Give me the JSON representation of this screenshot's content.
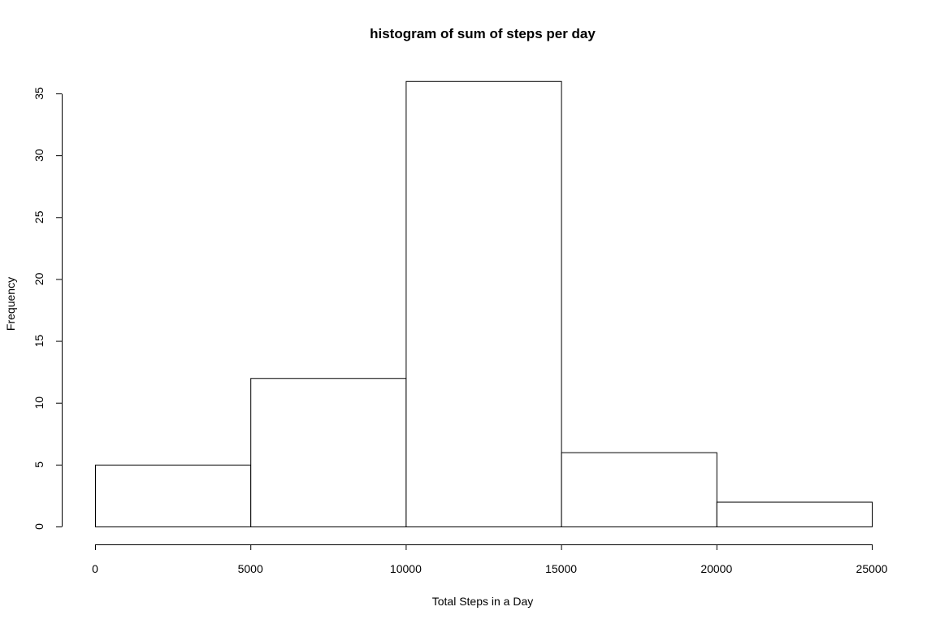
{
  "chart_data": {
    "type": "bar",
    "title": "histogram of sum of steps per day",
    "xlabel": "Total Steps in a Day",
    "ylabel": "Frequency",
    "bins": [
      {
        "from": 0,
        "to": 5000,
        "count": 5
      },
      {
        "from": 5000,
        "to": 10000,
        "count": 12
      },
      {
        "from": 10000,
        "to": 15000,
        "count": 36
      },
      {
        "from": 15000,
        "to": 20000,
        "count": 6
      },
      {
        "from": 20000,
        "to": 25000,
        "count": 2
      }
    ],
    "xlim": [
      0,
      25000
    ],
    "ylim": [
      0,
      35
    ],
    "xticks": [
      "0",
      "5000",
      "10000",
      "15000",
      "20000",
      "25000"
    ],
    "yticks": [
      "0",
      "5",
      "10",
      "15",
      "20",
      "25",
      "30",
      "35"
    ],
    "bar_fill": "#ffffff",
    "bar_stroke": "#000000",
    "grid": false,
    "legend": "none"
  }
}
